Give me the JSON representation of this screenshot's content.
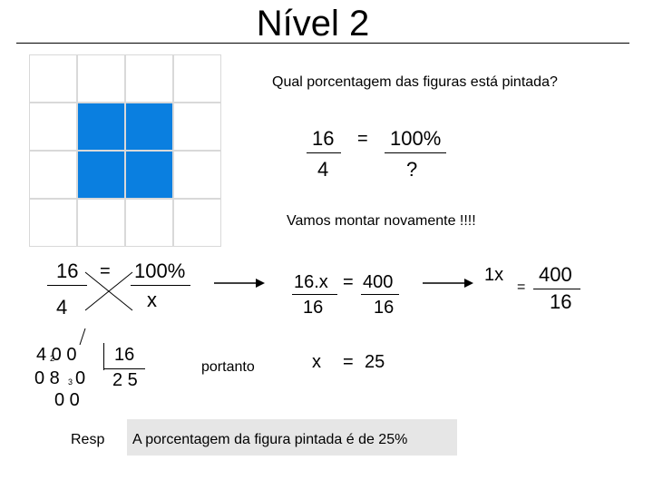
{
  "title": "Nível 2",
  "grid": {
    "rows": 4,
    "cols": 4,
    "shaded": [
      [
        1,
        1
      ],
      [
        1,
        2
      ],
      [
        2,
        1
      ],
      [
        2,
        2
      ]
    ],
    "shade_color": "#0a7fe0",
    "line_color": "#d9d9d9"
  },
  "question": "Qual porcentagem das figuras está pintada?",
  "prop1": {
    "a": "16",
    "b": "4",
    "eq": "=",
    "c": "100%",
    "d": "?"
  },
  "again": "Vamos montar novamente !!!!",
  "prop2": {
    "a": "16",
    "b": "4",
    "eq": "=",
    "c": "100%",
    "d": "x"
  },
  "step": {
    "lhs_num": "16.x",
    "eq": "=",
    "rhs_num": "400",
    "lhs_den": "16",
    "rhs_den": "16"
  },
  "step2": {
    "lhs": "1x",
    "eq": "=",
    "num": "400",
    "den": "16"
  },
  "division": {
    "dividend": "4 0 0",
    "divisor": "16",
    "row2": "0 8",
    "row2b": "0",
    "sub1": "2",
    "sub2": "3",
    "row3": "0 0",
    "quotient": "2 5"
  },
  "portanto": "portanto",
  "result": {
    "var": "x",
    "eq": "=",
    "value": "25"
  },
  "resp_label": "Resp",
  "resp_text": "A porcentagem da figura pintada é de 25%"
}
